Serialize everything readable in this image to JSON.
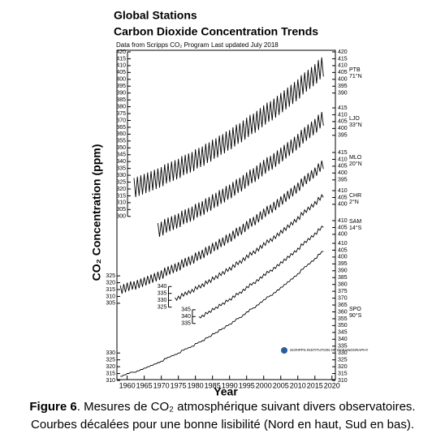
{
  "chart_data": {
    "type": "line",
    "title": "Global Stations",
    "subtitle": "Carbon Dioxide Concentration Trends",
    "source": "Data from Scripps CO₂ Program",
    "updated": "Last updated July 2018",
    "y_label": "CO₂ Concentration (ppm)",
    "x_label": "Year",
    "logo": "SCRIPPS INSTITUTION OF OCEANOGRAPHY",
    "xlim": [
      1957,
      2021
    ],
    "xticks": [
      1960,
      1965,
      1970,
      1975,
      1980,
      1985,
      1990,
      1995,
      2000,
      2005,
      2010,
      2015,
      2020
    ],
    "x": [
      1958,
      1958.5,
      1959,
      1959.5,
      1960,
      1960.5,
      1961,
      1961.5,
      1962,
      1962.5,
      1963,
      1963.5,
      1964,
      1964.5,
      1965,
      1965.5,
      1966,
      1966.5,
      1967,
      1967.5,
      1968,
      1968.5,
      1969,
      1969.5,
      1970,
      1970.5,
      1971,
      1971.5,
      1972,
      1972.5,
      1973,
      1973.5,
      1974,
      1974.5,
      1975,
      1975.5,
      1976,
      1976.5,
      1977,
      1977.5,
      1978,
      1978.5,
      1979,
      1979.5,
      1980,
      1980.5,
      1981,
      1981.5,
      1982,
      1982.5,
      1983,
      1983.5,
      1984,
      1984.5,
      1985,
      1985.5,
      1986,
      1986.5,
      1987,
      1987.5,
      1988,
      1988.5,
      1989,
      1989.5,
      1990,
      1990.5,
      1991,
      1991.5,
      1992,
      1992.5,
      1993,
      1993.5,
      1994,
      1994.5,
      1995,
      1995.5,
      1996,
      1996.5,
      1997,
      1997.5,
      1998,
      1998.5,
      1999,
      1999.5,
      2000,
      2000.5,
      2001,
      2001.5,
      2002,
      2002.5,
      2003,
      2003.5,
      2004,
      2004.5,
      2005,
      2005.5,
      2006,
      2006.5,
      2007,
      2007.5,
      2008,
      2008.5,
      2009,
      2009.5,
      2010,
      2010.5,
      2011,
      2011.5,
      2012,
      2012.5,
      2013,
      2013.5,
      2014,
      2014.5,
      2015,
      2015.5,
      2016,
      2016.5,
      2017,
      2017.5
    ],
    "series": [
      {
        "name": "PTB",
        "latitude": "71°N",
        "color": "#000000",
        "ylim": [
          300,
          420
        ],
        "yticks": [
          390,
          395,
          400,
          405,
          410,
          415,
          420
        ],
        "yticks_left": [
          300,
          305,
          310,
          315,
          320,
          325,
          330,
          335,
          340,
          345,
          350,
          355,
          360,
          365,
          370,
          375,
          380,
          385,
          390,
          395,
          400,
          405,
          410,
          415,
          420
        ],
        "values": [
          null,
          null,
          null,
          null,
          null,
          null,
          null,
          null,
          328,
          314,
          329,
          315,
          330,
          316,
          331,
          317,
          332,
          318,
          333,
          319,
          334,
          320,
          335,
          321,
          336,
          322,
          338,
          324,
          339,
          325,
          340,
          326,
          341,
          327,
          342,
          328,
          344,
          330,
          345,
          331,
          346,
          332,
          347,
          333,
          349,
          335,
          350,
          336,
          351,
          337,
          353,
          339,
          354,
          340,
          356,
          342,
          357,
          343,
          359,
          345,
          360,
          346,
          362,
          348,
          363,
          349,
          365,
          351,
          367,
          353,
          368,
          354,
          370,
          356,
          372,
          358,
          374,
          360,
          375,
          361,
          377,
          363,
          379,
          365,
          381,
          367,
          383,
          369,
          384,
          370,
          386,
          372,
          388,
          374,
          390,
          376,
          392,
          378,
          394,
          380,
          396,
          382,
          398,
          384,
          400,
          386,
          403,
          389,
          405,
          391,
          407,
          393,
          409,
          395,
          411,
          397,
          414,
          400,
          416,
          402
        ]
      },
      {
        "name": "LJO",
        "latitude": "33°N",
        "color": "#000000",
        "ylim": [
          315,
          415
        ],
        "yticks": [
          395,
          400,
          405,
          410,
          415
        ],
        "values": [
          null,
          null,
          null,
          null,
          null,
          null,
          null,
          null,
          null,
          null,
          null,
          null,
          null,
          null,
          null,
          null,
          null,
          null,
          null,
          null,
          null,
          null,
          331,
          321,
          332,
          322,
          334,
          324,
          335,
          325,
          336,
          326,
          337,
          327,
          338,
          328,
          340,
          330,
          341,
          331,
          342,
          332,
          343,
          333,
          345,
          335,
          346,
          336,
          347,
          337,
          349,
          339,
          350,
          340,
          352,
          342,
          353,
          343,
          355,
          345,
          356,
          346,
          358,
          348,
          359,
          349,
          361,
          351,
          363,
          353,
          364,
          354,
          366,
          356,
          368,
          358,
          370,
          360,
          371,
          361,
          373,
          363,
          375,
          365,
          377,
          367,
          379,
          369,
          380,
          370,
          382,
          372,
          384,
          374,
          386,
          376,
          388,
          378,
          390,
          380,
          392,
          382,
          394,
          384,
          396,
          386,
          399,
          389,
          401,
          391,
          403,
          393,
          405,
          395,
          407,
          397,
          410,
          400,
          412,
          402
        ]
      },
      {
        "name": "MLO",
        "latitude": "20°N",
        "color": "#000000",
        "ylim": [
          305,
          415
        ],
        "yticks": [
          395,
          400,
          405,
          410,
          415
        ],
        "yticks_left": [
          305,
          310,
          315,
          320,
          325
        ],
        "values": [
          318,
          312,
          319,
          313,
          320,
          314,
          321,
          315,
          321,
          315,
          322,
          316,
          323,
          317,
          324,
          318,
          325,
          319,
          326,
          320,
          327,
          321,
          328,
          322,
          329,
          323,
          331,
          325,
          332,
          326,
          333,
          327,
          334,
          328,
          335,
          329,
          337,
          331,
          338,
          332,
          339,
          333,
          340,
          334,
          342,
          336,
          343,
          337,
          344,
          338,
          346,
          340,
          347,
          341,
          349,
          343,
          350,
          344,
          352,
          346,
          353,
          347,
          355,
          349,
          356,
          350,
          358,
          352,
          360,
          354,
          361,
          355,
          363,
          357,
          365,
          359,
          367,
          361,
          368,
          362,
          370,
          364,
          372,
          366,
          374,
          368,
          376,
          370,
          377,
          371,
          379,
          373,
          381,
          375,
          383,
          377,
          385,
          379,
          387,
          381,
          389,
          383,
          391,
          385,
          393,
          387,
          396,
          390,
          398,
          392,
          400,
          394,
          402,
          396,
          404,
          398,
          407,
          401,
          409,
          403
        ]
      },
      {
        "name": "CHR",
        "latitude": "2°N",
        "color": "#000000",
        "ylim": [
          325,
          410
        ],
        "yticks": [
          400,
          405,
          410
        ],
        "yticks_left": [
          325,
          330,
          335,
          340
        ],
        "values": [
          null,
          null,
          null,
          null,
          null,
          null,
          null,
          null,
          null,
          null,
          null,
          null,
          null,
          null,
          null,
          null,
          null,
          null,
          null,
          null,
          null,
          null,
          null,
          null,
          null,
          null,
          null,
          null,
          null,
          null,
          null,
          null,
          332,
          330,
          333,
          331,
          335,
          333,
          336,
          334,
          337,
          335,
          338,
          336,
          340,
          338,
          341,
          339,
          342,
          340,
          344,
          342,
          345,
          343,
          347,
          345,
          348,
          346,
          350,
          348,
          351,
          349,
          353,
          351,
          354,
          352,
          356,
          354,
          358,
          356,
          359,
          357,
          361,
          359,
          363,
          361,
          365,
          363,
          366,
          364,
          368,
          366,
          370,
          368,
          372,
          370,
          374,
          372,
          375,
          373,
          377,
          375,
          379,
          377,
          381,
          379,
          383,
          381,
          385,
          383,
          387,
          385,
          389,
          387,
          391,
          389,
          394,
          392,
          396,
          394,
          398,
          396,
          400,
          398,
          402,
          400,
          405,
          403,
          407,
          405
        ]
      },
      {
        "name": "SAM",
        "latitude": "14°S",
        "color": "#000000",
        "ylim": [
          335,
          410
        ],
        "yticks": [
          400,
          405,
          410
        ],
        "yticks_left": [
          335,
          340,
          345
        ],
        "values": [
          null,
          null,
          null,
          null,
          null,
          null,
          null,
          null,
          null,
          null,
          null,
          null,
          null,
          null,
          null,
          null,
          null,
          null,
          null,
          null,
          null,
          null,
          null,
          null,
          null,
          null,
          null,
          null,
          null,
          null,
          null,
          null,
          null,
          null,
          null,
          null,
          null,
          null,
          null,
          null,
          null,
          null,
          null,
          null,
          null,
          null,
          340,
          339,
          341,
          340,
          343,
          342,
          344,
          343,
          346,
          345,
          347,
          346,
          349,
          348,
          350,
          349,
          352,
          351,
          353,
          352,
          355,
          354,
          357,
          356,
          358,
          357,
          360,
          359,
          362,
          361,
          364,
          363,
          365,
          364,
          367,
          366,
          369,
          368,
          371,
          370,
          373,
          372,
          374,
          373,
          376,
          375,
          378,
          377,
          380,
          379,
          382,
          381,
          384,
          383,
          386,
          385,
          388,
          387,
          390,
          389,
          393,
          392,
          395,
          394,
          397,
          396,
          399,
          398,
          401,
          400,
          404,
          403,
          406,
          405
        ]
      },
      {
        "name": "SPO",
        "latitude": "90°S",
        "color": "#000000",
        "ylim": [
          310,
          410
        ],
        "yticks": [
          310,
          315,
          320,
          325,
          330,
          335,
          340,
          345,
          350,
          355,
          360,
          365,
          370,
          375,
          380,
          385,
          390,
          395,
          400,
          405,
          410
        ],
        "yticks_left": [
          310,
          315,
          320,
          325,
          330
        ],
        "values": [
          313,
          313,
          314,
          314,
          315,
          315,
          316,
          316,
          316,
          316,
          317,
          317,
          318,
          318,
          319,
          319,
          320,
          320,
          321,
          321,
          322,
          322,
          323,
          323,
          324,
          324,
          326,
          326,
          327,
          327,
          328,
          328,
          329,
          329,
          330,
          330,
          332,
          332,
          333,
          333,
          334,
          334,
          335,
          335,
          337,
          337,
          338,
          338,
          339,
          339,
          341,
          341,
          342,
          342,
          344,
          344,
          345,
          345,
          347,
          347,
          348,
          348,
          350,
          350,
          351,
          351,
          353,
          353,
          355,
          355,
          356,
          356,
          358,
          358,
          360,
          360,
          362,
          362,
          363,
          363,
          365,
          365,
          367,
          367,
          369,
          369,
          371,
          371,
          372,
          372,
          374,
          374,
          376,
          376,
          378,
          378,
          380,
          380,
          382,
          382,
          384,
          384,
          386,
          386,
          388,
          388,
          391,
          391,
          393,
          393,
          395,
          395,
          397,
          397,
          399,
          399,
          402,
          402,
          404,
          404
        ]
      }
    ]
  },
  "caption": {
    "label": "Figure 6",
    "text": ". Mesures de CO₂ atmosphérique suivant divers observatoires.",
    "line2": "Courbes décalées pour une bonne lisibilité (Nord en haut, Sud en bas)."
  }
}
